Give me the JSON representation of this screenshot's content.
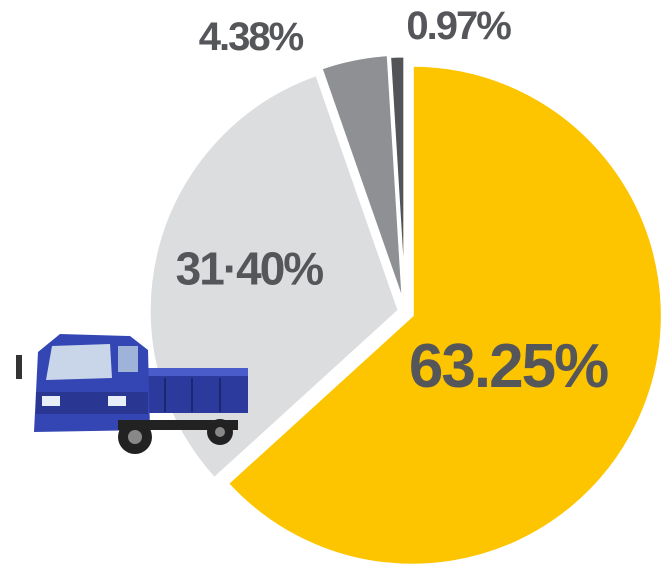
{
  "chart_data": {
    "type": "pie",
    "values": [
      63.25,
      31.4,
      4.38,
      0.97
    ],
    "value_labels": [
      "63.25%",
      "31·40%",
      "4.38%",
      "0.97%"
    ],
    "colors": [
      "#fdc400",
      "#dcdddf",
      "#8e9094",
      "#535458"
    ]
  }
}
